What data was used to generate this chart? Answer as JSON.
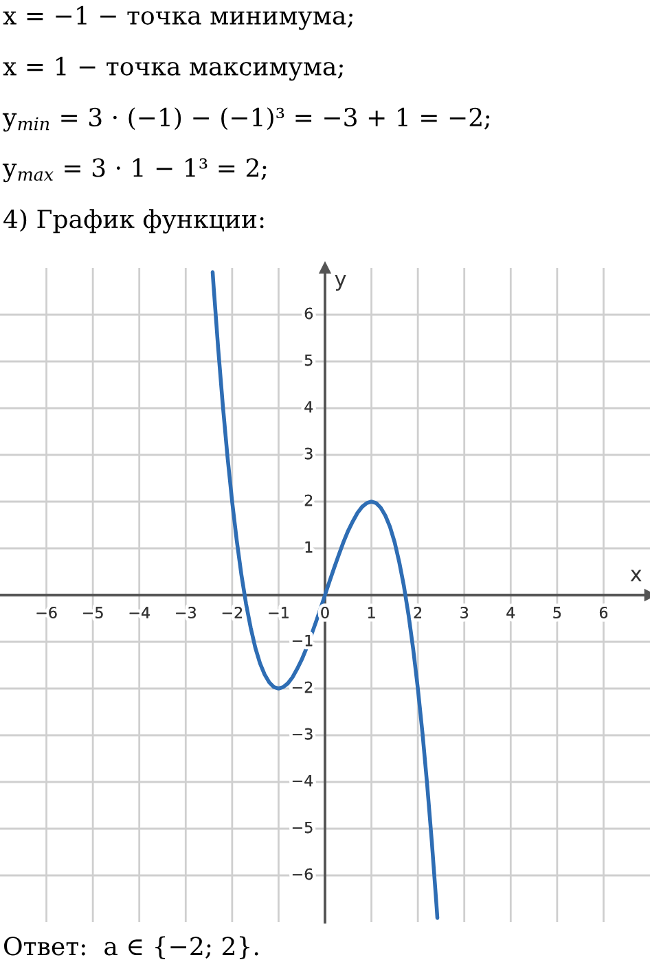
{
  "chart_data": {
    "type": "line",
    "title": "4) График функции:",
    "annotations": [
      "x = −1 − точка минимума;",
      "x = 1 − точка максимума;",
      "y$_{min}$ = 3 · (−1) − (−1)³ = −3 + 1 = −2;",
      "y$_{max}$ = 3 · 1 − 1³ = 2;",
      "Ответ:  a ∈ {−2; 2}."
    ],
    "xlabel": "x",
    "ylabel": "y",
    "x": [
      -2.42,
      -2.4,
      -2.3,
      -2.2,
      -2.1,
      -2.0,
      -1.9,
      -1.8,
      -1.7,
      -1.6,
      -1.5,
      -1.4,
      -1.3,
      -1.2,
      -1.1,
      -1.0,
      -0.9,
      -0.8,
      -0.7,
      -0.6,
      -0.5,
      -0.4,
      -0.3,
      -0.2,
      -0.1,
      0,
      0.1,
      0.2,
      0.3,
      0.4,
      0.5,
      0.6,
      0.7,
      0.8,
      0.9,
      1.0,
      1.1,
      1.2,
      1.3,
      1.4,
      1.5,
      1.6,
      1.7,
      1.8,
      1.9,
      2.0,
      2.1,
      2.2,
      2.3,
      2.4,
      2.42
    ],
    "series": [
      {
        "color": "#2e6db4",
        "values": [
          6.91,
          6.62,
          5.27,
          4.05,
          2.96,
          2,
          1.16,
          0.43,
          -0.19,
          -0.7,
          -1.13,
          -1.46,
          -1.7,
          -1.87,
          -1.97,
          -2,
          -1.97,
          -1.89,
          -1.76,
          -1.58,
          -1.38,
          -1.14,
          -0.87,
          -0.59,
          -0.3,
          0,
          0.3,
          0.59,
          0.87,
          1.14,
          1.38,
          1.58,
          1.76,
          1.89,
          1.97,
          2,
          1.97,
          1.87,
          1.7,
          1.46,
          1.13,
          0.7,
          0.19,
          -0.43,
          -1.16,
          -2,
          -2.96,
          -4.05,
          -5.27,
          -6.62,
          -6.91
        ]
      }
    ],
    "xlim": [
      -7,
      7
    ],
    "ylim": [
      -7,
      7
    ],
    "xticks": [
      {
        "value": -6,
        "label": "−6"
      },
      {
        "value": -5,
        "label": "−5"
      },
      {
        "value": -4,
        "label": "−4"
      },
      {
        "value": -3,
        "label": "−3"
      },
      {
        "value": -2,
        "label": "−2"
      },
      {
        "value": -1,
        "label": "−1"
      },
      0,
      1,
      2,
      3,
      4,
      5,
      6
    ],
    "yticks": [
      {
        "value": -6,
        "label": "−6"
      },
      {
        "value": -5,
        "label": "−5"
      },
      {
        "value": -4,
        "label": "−4"
      },
      {
        "value": -3,
        "label": "−3"
      },
      {
        "value": -2,
        "label": "−2"
      },
      {
        "value": -1,
        "label": "−1"
      },
      1,
      2,
      3,
      4,
      5,
      6
    ],
    "grid": true
  }
}
